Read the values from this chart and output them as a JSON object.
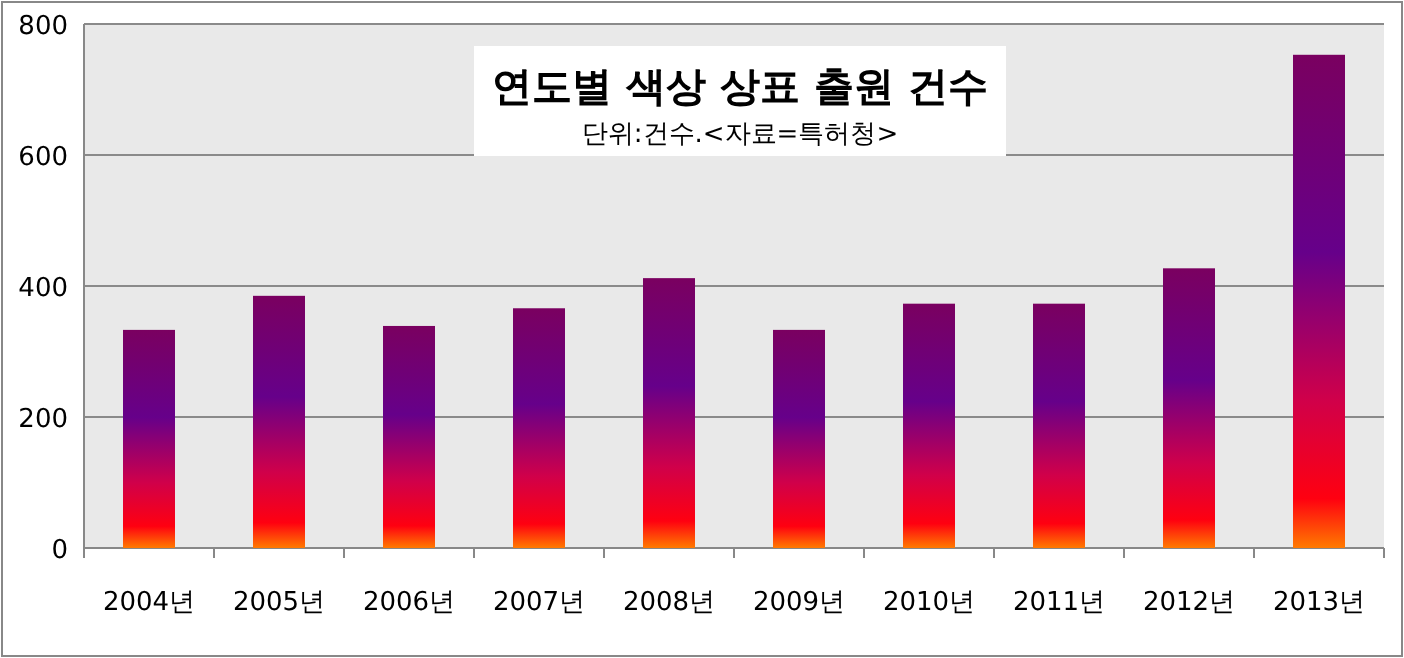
{
  "chart_data": {
    "type": "bar",
    "title": "연도별 색상 상표 출원 건수",
    "subtitle": "단위:건수.<자료=특허청>",
    "categories": [
      "2004년",
      "2005년",
      "2006년",
      "2007년",
      "2008년",
      "2009년",
      "2010년",
      "2011년",
      "2012년",
      "2013년"
    ],
    "values": [
      333,
      385,
      339,
      366,
      412,
      333,
      373,
      373,
      427,
      753
    ],
    "color": "#66008a",
    "ylim": [
      0,
      800
    ],
    "yticks": [
      0,
      200,
      400,
      600,
      800
    ],
    "grid": "y"
  }
}
